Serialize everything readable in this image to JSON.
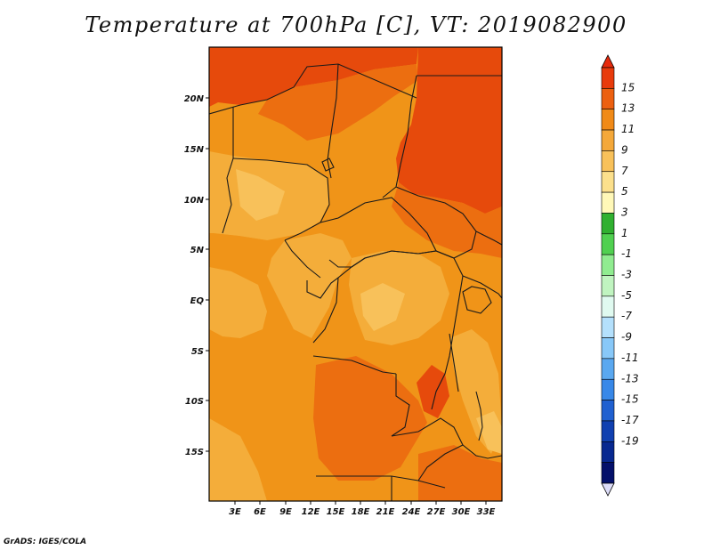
{
  "title": "Temperature at 700hPa [C], VT: 2019082900",
  "credit": "GrADS: IGES/COLA",
  "map": {
    "lon_labels": [
      "3E",
      "6E",
      "9E",
      "12E",
      "15E",
      "18E",
      "21E",
      "24E",
      "27E",
      "30E",
      "33E"
    ],
    "lat_labels": [
      "20N",
      "15N",
      "10N",
      "5N",
      "EQ",
      "5S",
      "10S",
      "15S"
    ],
    "colors": {
      "c5_7": "#f8c15a",
      "c7_9": "#f4ad3a",
      "c9_11": "#f09418",
      "c11_13": "#ec6e10",
      "c13_15": "#e64a0c",
      "border": "#1a1a1a"
    }
  },
  "colorbar": {
    "levels": [
      "15",
      "13",
      "11",
      "9",
      "7",
      "5",
      "3",
      "1",
      "-1",
      "-3",
      "-5",
      "-7",
      "-9",
      "-11",
      "-13",
      "-15",
      "-17",
      "-19"
    ],
    "colors": [
      "#e83b0c",
      "#ec6010",
      "#f08a18",
      "#f4a83a",
      "#f8c15a",
      "#fce08c",
      "#fff8b8",
      "#30b030",
      "#50d050",
      "#90ec90",
      "#c0f4c0",
      "#e0faf0",
      "#b4e0fc",
      "#88c8f8",
      "#5aa8f0",
      "#3888e8",
      "#2060d0",
      "#1040b0",
      "#082890",
      "#04106a"
    ],
    "over_color": "#e62a0c",
    "under_color": "#dcdcf8"
  }
}
